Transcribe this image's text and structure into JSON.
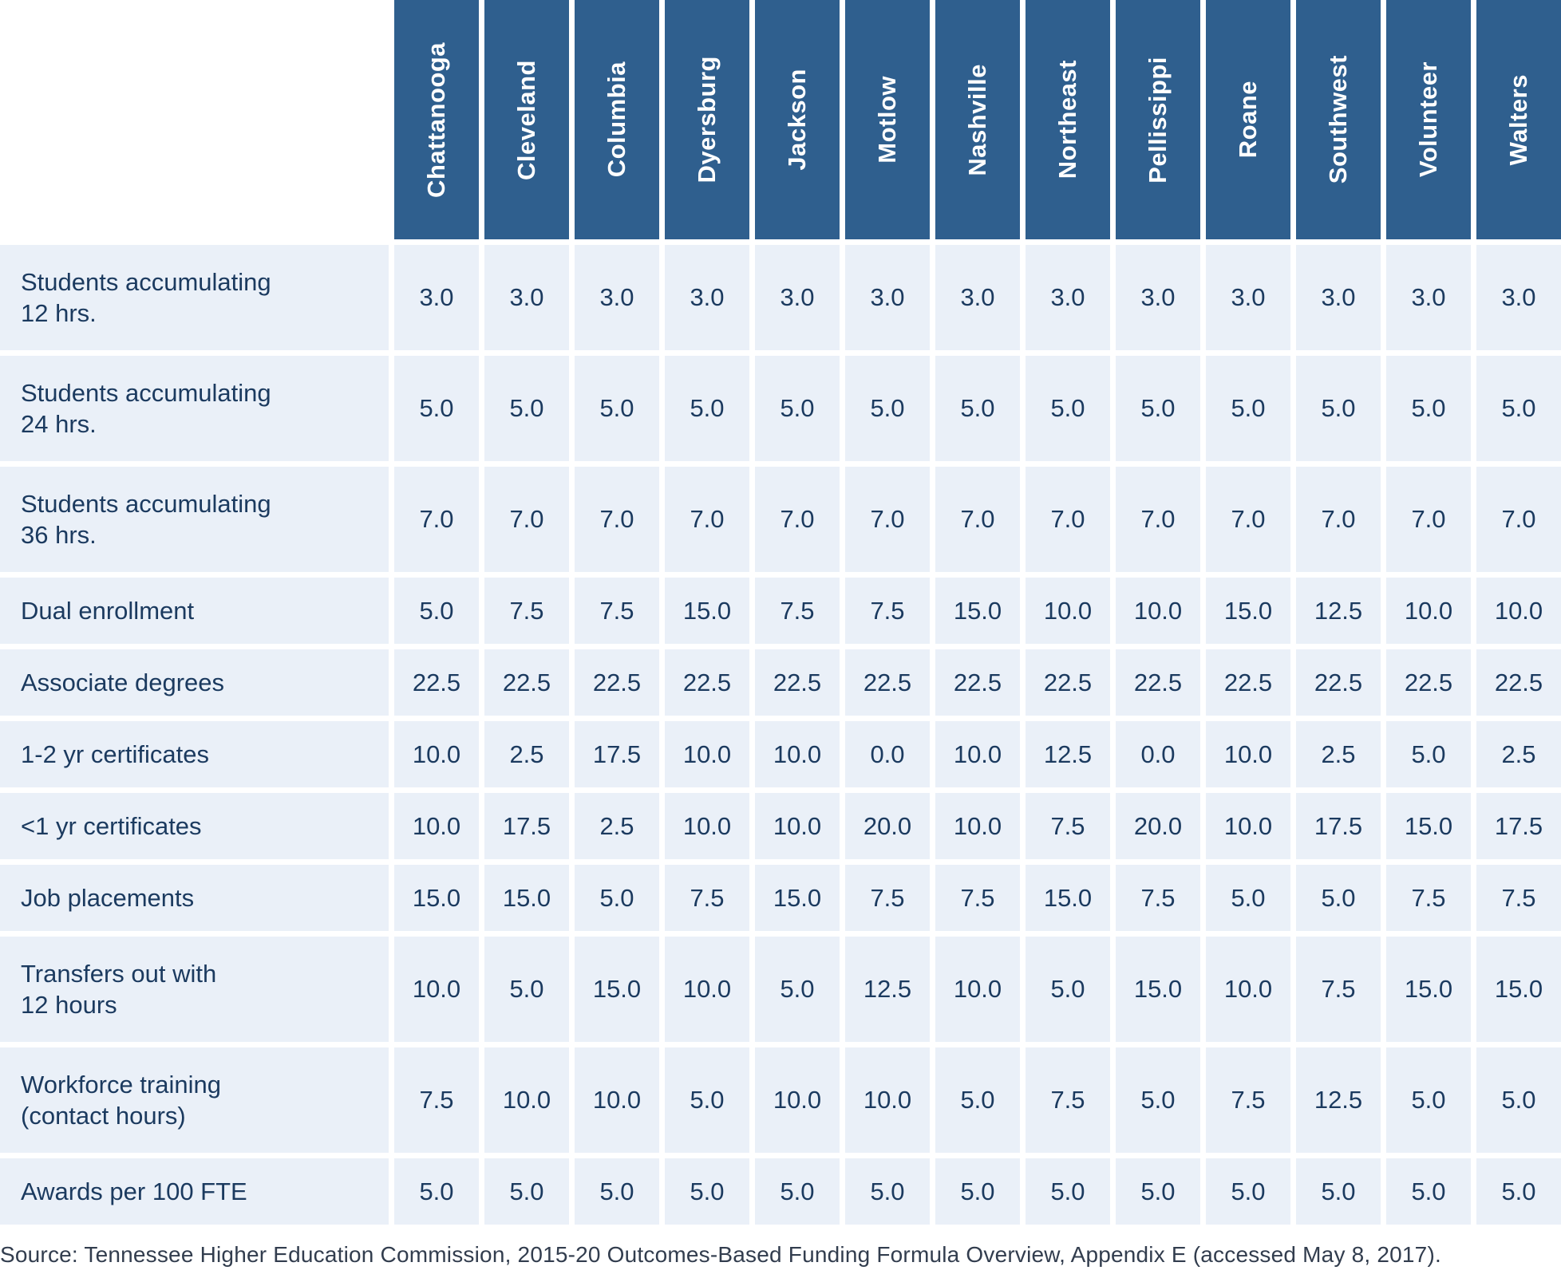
{
  "colors": {
    "header_bg": "#2f5f8e",
    "cell_bg": "#eaf0f8",
    "text_navy": "#1b3a5f",
    "source_text": "#323d4e"
  },
  "chart_data": {
    "type": "table",
    "title": "",
    "columns": [
      "Chattanooga",
      "Cleveland",
      "Columbia",
      "Dyersburg",
      "Jackson",
      "Motlow",
      "Nashville",
      "Northeast",
      "Pellissippi",
      "Roane",
      "Southwest",
      "Volunteer",
      "Walters"
    ],
    "rows": [
      {
        "label": "Students accumulating\n12 hrs.",
        "values": [
          "3.0",
          "3.0",
          "3.0",
          "3.0",
          "3.0",
          "3.0",
          "3.0",
          "3.0",
          "3.0",
          "3.0",
          "3.0",
          "3.0",
          "3.0"
        ]
      },
      {
        "label": "Students accumulating\n24 hrs.",
        "values": [
          "5.0",
          "5.0",
          "5.0",
          "5.0",
          "5.0",
          "5.0",
          "5.0",
          "5.0",
          "5.0",
          "5.0",
          "5.0",
          "5.0",
          "5.0"
        ]
      },
      {
        "label": "Students accumulating\n36 hrs.",
        "values": [
          "7.0",
          "7.0",
          "7.0",
          "7.0",
          "7.0",
          "7.0",
          "7.0",
          "7.0",
          "7.0",
          "7.0",
          "7.0",
          "7.0",
          "7.0"
        ]
      },
      {
        "label": "Dual enrollment",
        "values": [
          "5.0",
          "7.5",
          "7.5",
          "15.0",
          "7.5",
          "7.5",
          "15.0",
          "10.0",
          "10.0",
          "15.0",
          "12.5",
          "10.0",
          "10.0"
        ]
      },
      {
        "label": "Associate degrees",
        "values": [
          "22.5",
          "22.5",
          "22.5",
          "22.5",
          "22.5",
          "22.5",
          "22.5",
          "22.5",
          "22.5",
          "22.5",
          "22.5",
          "22.5",
          "22.5"
        ]
      },
      {
        "label": "1-2 yr certificates",
        "values": [
          "10.0",
          "2.5",
          "17.5",
          "10.0",
          "10.0",
          "0.0",
          "10.0",
          "12.5",
          "0.0",
          "10.0",
          "2.5",
          "5.0",
          "2.5"
        ]
      },
      {
        "label": "<1 yr certificates",
        "values": [
          "10.0",
          "17.5",
          "2.5",
          "10.0",
          "10.0",
          "20.0",
          "10.0",
          "7.5",
          "20.0",
          "10.0",
          "17.5",
          "15.0",
          "17.5"
        ]
      },
      {
        "label": "Job placements",
        "values": [
          "15.0",
          "15.0",
          "5.0",
          "7.5",
          "15.0",
          "7.5",
          "7.5",
          "15.0",
          "7.5",
          "5.0",
          "5.0",
          "7.5",
          "7.5"
        ]
      },
      {
        "label": "Transfers out with\n12 hours",
        "values": [
          "10.0",
          "5.0",
          "15.0",
          "10.0",
          "5.0",
          "12.5",
          "10.0",
          "5.0",
          "15.0",
          "10.0",
          "7.5",
          "15.0",
          "15.0"
        ]
      },
      {
        "label": "Workforce training\n(contact hours)",
        "values": [
          "7.5",
          "10.0",
          "10.0",
          "5.0",
          "10.0",
          "10.0",
          "5.0",
          "7.5",
          "5.0",
          "7.5",
          "12.5",
          "5.0",
          "5.0"
        ]
      },
      {
        "label": "Awards per 100 FTE",
        "values": [
          "5.0",
          "5.0",
          "5.0",
          "5.0",
          "5.0",
          "5.0",
          "5.0",
          "5.0",
          "5.0",
          "5.0",
          "5.0",
          "5.0",
          "5.0"
        ]
      }
    ],
    "source": "Source: Tennessee Higher Education Commission, 2015-20 Outcomes-Based Funding Formula Overview, Appendix E (accessed May 8, 2017)."
  }
}
